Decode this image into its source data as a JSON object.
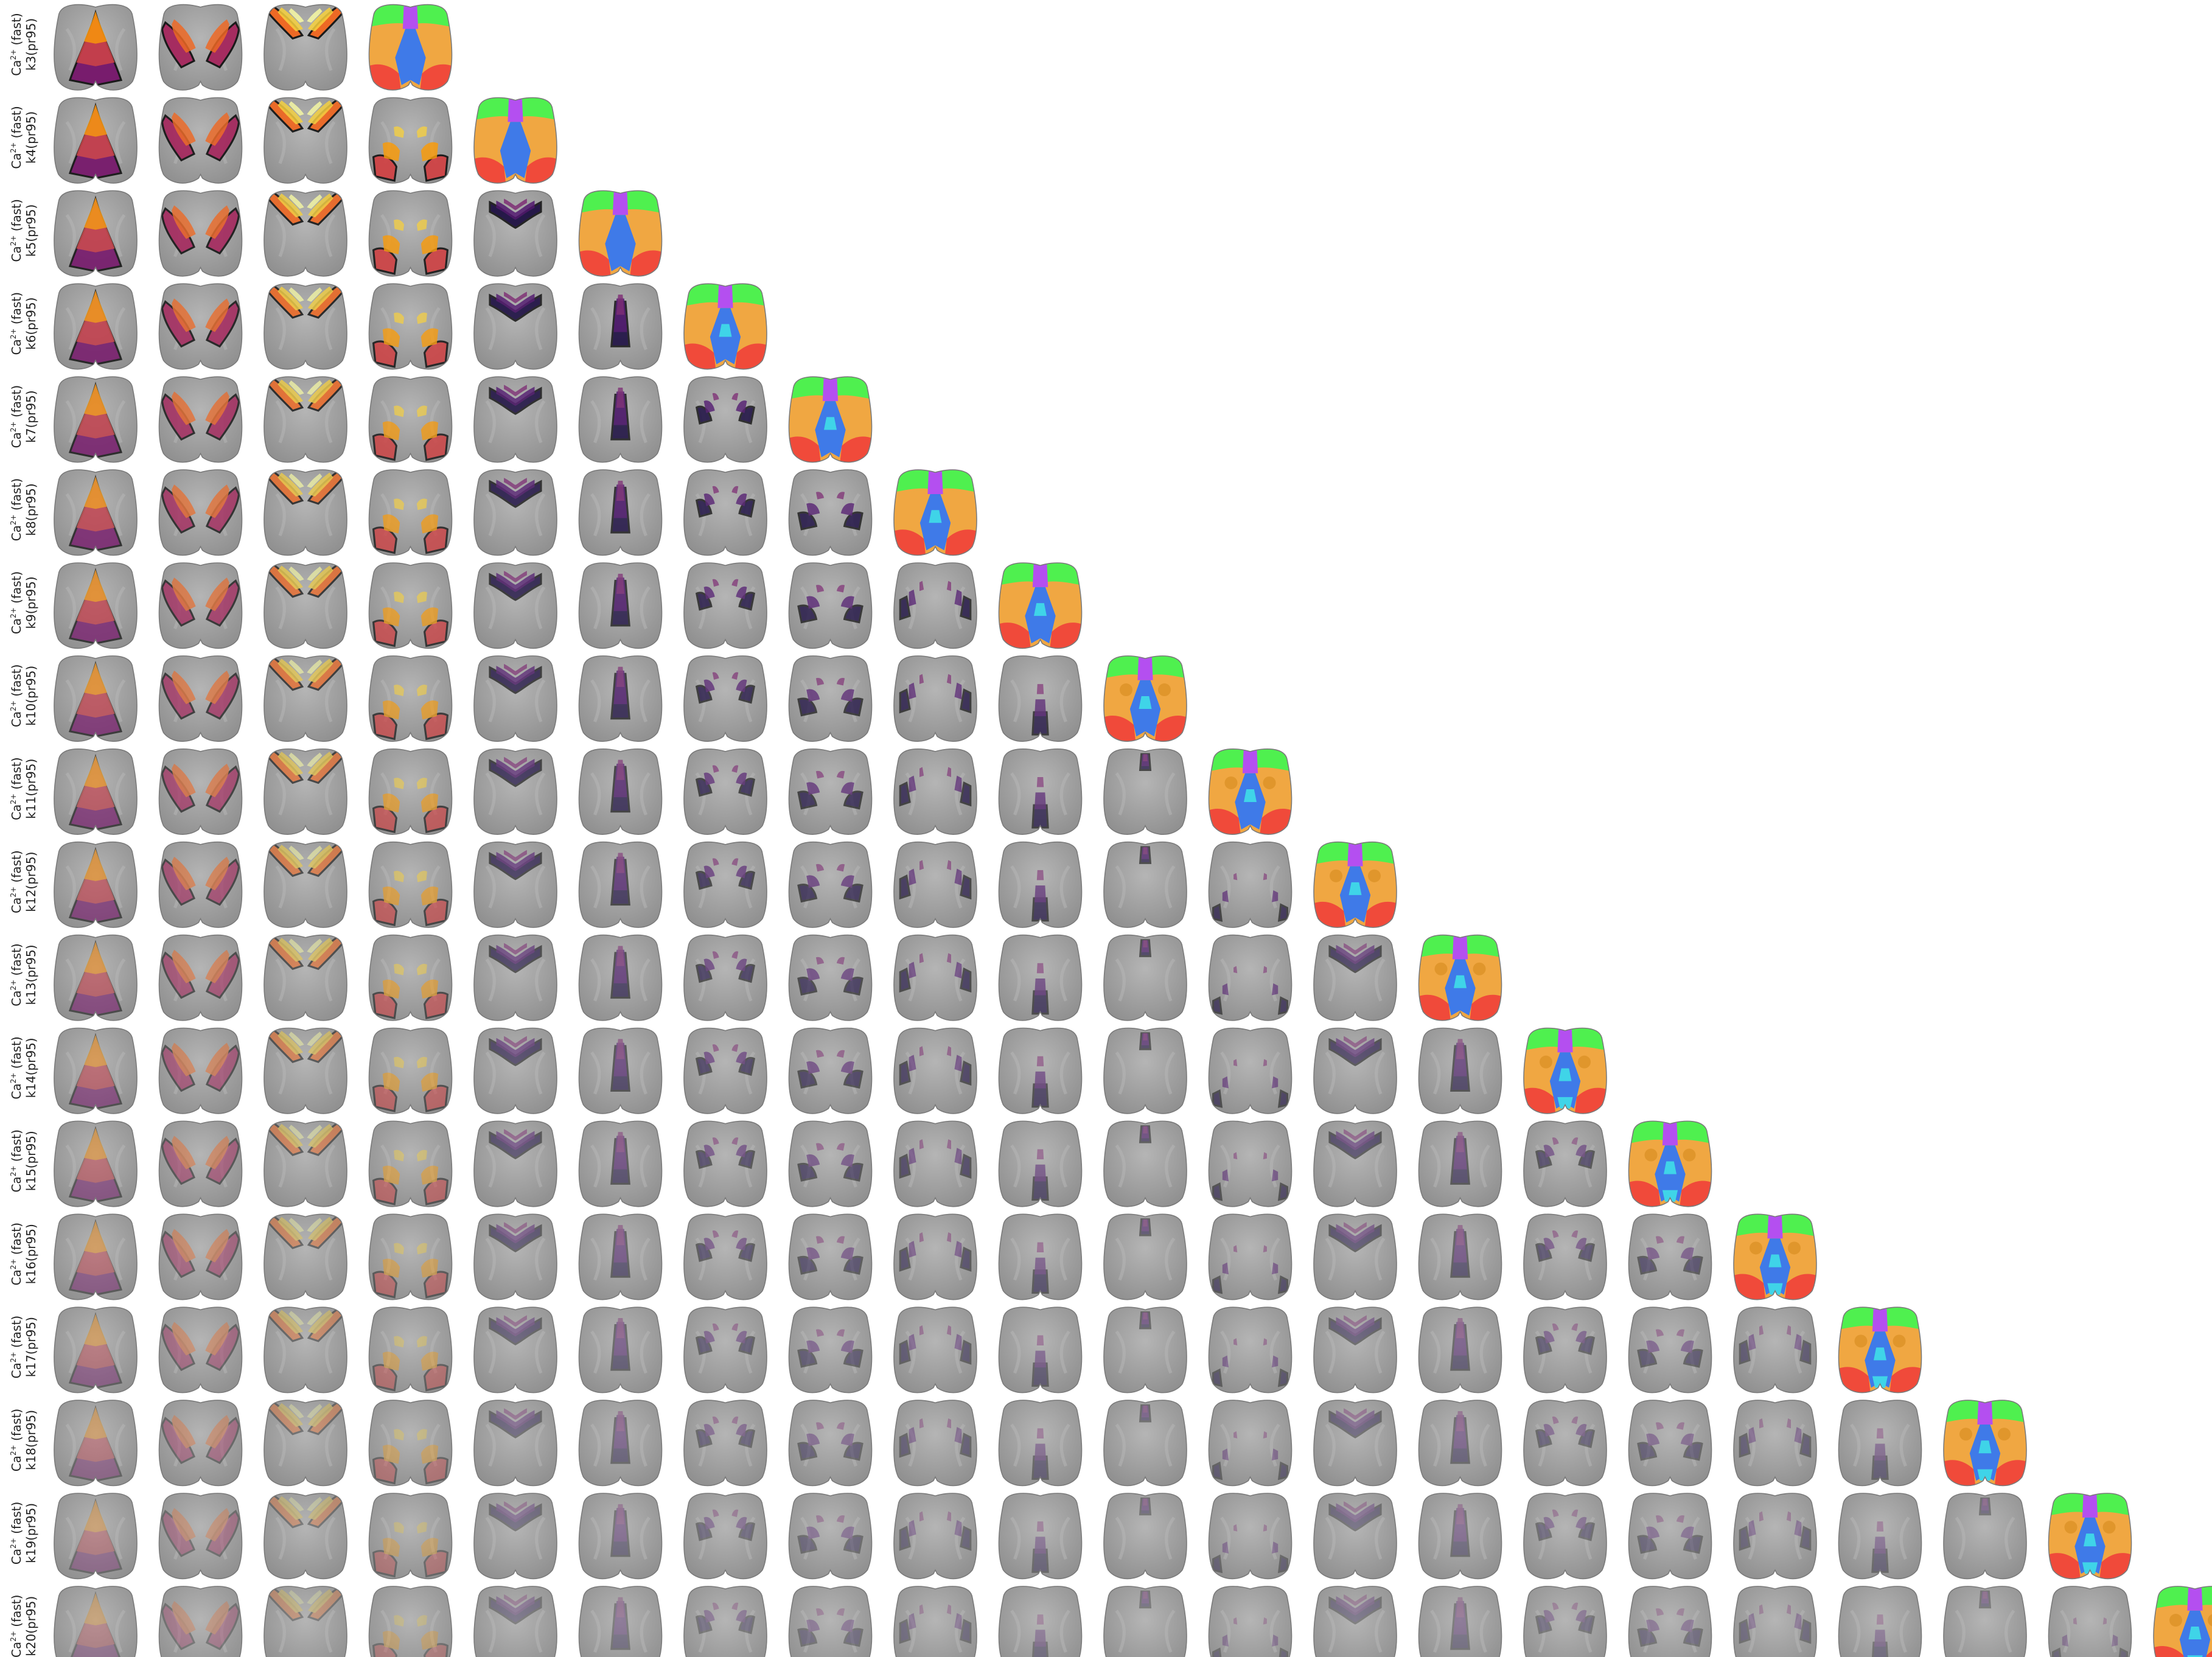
{
  "figure": {
    "rows": [
      {
        "label_line1_prefix": "Ca",
        "label_sup": "2+",
        "label_line1_suffix": " (fast)",
        "label_line2": "k3(pr95)",
        "k": 3
      },
      {
        "label_line1_prefix": "Ca",
        "label_sup": "2+",
        "label_line1_suffix": " (fast)",
        "label_line2": "k4(pr95)",
        "k": 4
      },
      {
        "label_line1_prefix": "Ca",
        "label_sup": "2+",
        "label_line1_suffix": " (fast)",
        "label_line2": "k5(pr95)",
        "k": 5
      },
      {
        "label_line1_prefix": "Ca",
        "label_sup": "2+",
        "label_line1_suffix": " (fast)",
        "label_line2": "k6(pr95)",
        "k": 6
      },
      {
        "label_line1_prefix": "Ca",
        "label_sup": "2+",
        "label_line1_suffix": " (fast)",
        "label_line2": "k7(pr95)",
        "k": 7
      },
      {
        "label_line1_prefix": "Ca",
        "label_sup": "2+",
        "label_line1_suffix": " (fast)",
        "label_line2": "k8(pr95)",
        "k": 8
      },
      {
        "label_line1_prefix": "Ca",
        "label_sup": "2+",
        "label_line1_suffix": " (fast)",
        "label_line2": "k9(pr95)",
        "k": 9
      },
      {
        "label_line1_prefix": "Ca",
        "label_sup": "2+",
        "label_line1_suffix": " (fast)",
        "label_line2": "k10(pr95)",
        "k": 10
      },
      {
        "label_line1_prefix": "Ca",
        "label_sup": "2+",
        "label_line1_suffix": " (fast)",
        "label_line2": "k11(pr95)",
        "k": 11
      },
      {
        "label_line1_prefix": "Ca",
        "label_sup": "2+",
        "label_line1_suffix": " (fast)",
        "label_line2": "k12(pr95)",
        "k": 12
      },
      {
        "label_line1_prefix": "Ca",
        "label_sup": "2+",
        "label_line1_suffix": " (fast)",
        "label_line2": "k13(pr95)",
        "k": 13
      },
      {
        "label_line1_prefix": "Ca",
        "label_sup": "2+",
        "label_line1_suffix": " (fast)",
        "label_line2": "k14(pr95)",
        "k": 14
      },
      {
        "label_line1_prefix": "Ca",
        "label_sup": "2+",
        "label_line1_suffix": " (fast)",
        "label_line2": "k15(pr95)",
        "k": 15
      },
      {
        "label_line1_prefix": "Ca",
        "label_sup": "2+",
        "label_line1_suffix": " (fast)",
        "label_line2": "k16(pr95)",
        "k": 16
      },
      {
        "label_line1_prefix": "Ca",
        "label_sup": "2+",
        "label_line1_suffix": " (fast)",
        "label_line2": "k17(pr95)",
        "k": 17
      },
      {
        "label_line1_prefix": "Ca",
        "label_sup": "2+",
        "label_line1_suffix": " (fast)",
        "label_line2": "k18(pr95)",
        "k": 18
      },
      {
        "label_line1_prefix": "Ca",
        "label_sup": "2+",
        "label_line1_suffix": " (fast)",
        "label_line2": "k19(pr95)",
        "k": 19
      },
      {
        "label_line1_prefix": "Ca",
        "label_sup": "2+",
        "label_line1_suffix": " (fast)",
        "label_line2": "k20(pr95)",
        "k": 20
      }
    ],
    "colors": {
      "cortex_gray": "#9a9a9a",
      "cortex_gray_light": "#b8b8b8",
      "outline_dark": "#1a1a1a",
      "magma": [
        "#1b0c41",
        "#4a0c6b",
        "#781c6d",
        "#a52c60",
        "#cf4446",
        "#ed6925",
        "#fb9b06",
        "#f7d13d",
        "#fcffa4"
      ],
      "atlas": [
        "#4ff04f",
        "#b44ff0",
        "#f0a742",
        "#3f7ae8",
        "#f04a3a",
        "#3fd4e8",
        "#f0e64f",
        "#e84fd4"
      ]
    }
  }
}
